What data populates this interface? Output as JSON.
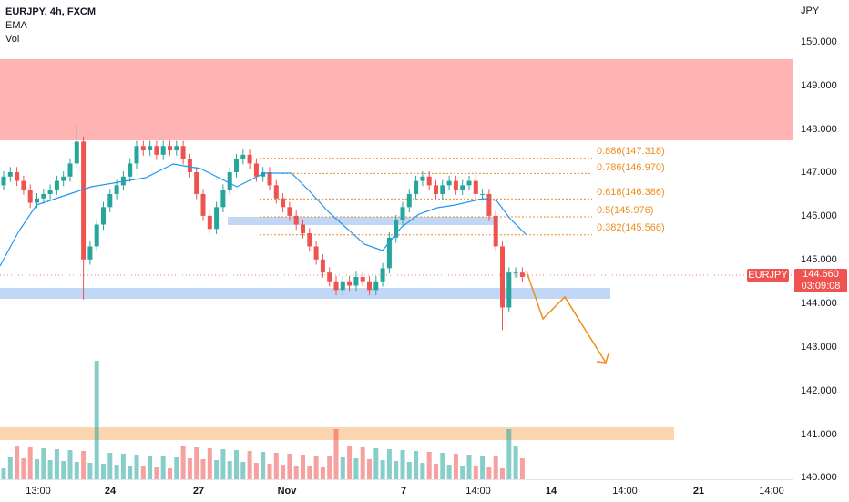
{
  "legend": {
    "symbol": "EURJPY, 4h, FXCM",
    "ema": "EMA",
    "vol": "Vol"
  },
  "price_axis": {
    "currency": "JPY",
    "labels": [
      "150.000",
      "149.000",
      "148.000",
      "147.000",
      "146.000",
      "145.000",
      "144.000",
      "143.000",
      "142.000",
      "141.000",
      "140.000"
    ]
  },
  "time_axis": {
    "labels": [
      "13:00",
      "24",
      "27",
      "Nov",
      "7",
      "14:00",
      "14",
      "14:00",
      "21",
      "14:00"
    ]
  },
  "current": {
    "symbol": "EURJPY",
    "price": "144.660",
    "countdown": "03:09:08"
  },
  "fib_levels": [
    {
      "label": "0.886(147.318)"
    },
    {
      "label": "0.786(146.970)"
    },
    {
      "label": "0.618(146.386)"
    },
    {
      "label": "0.5(145.976)"
    },
    {
      "label": "0.382(145.566)"
    }
  ],
  "colors": {
    "up": "#26a69a",
    "down": "#ef5350",
    "ema": "#2196f3",
    "fib": "#f08c1e",
    "supply_zone": "#ffb3b3",
    "demand_zone": "#bbd2f5",
    "volume_zone": "#fbd5b0"
  }
}
